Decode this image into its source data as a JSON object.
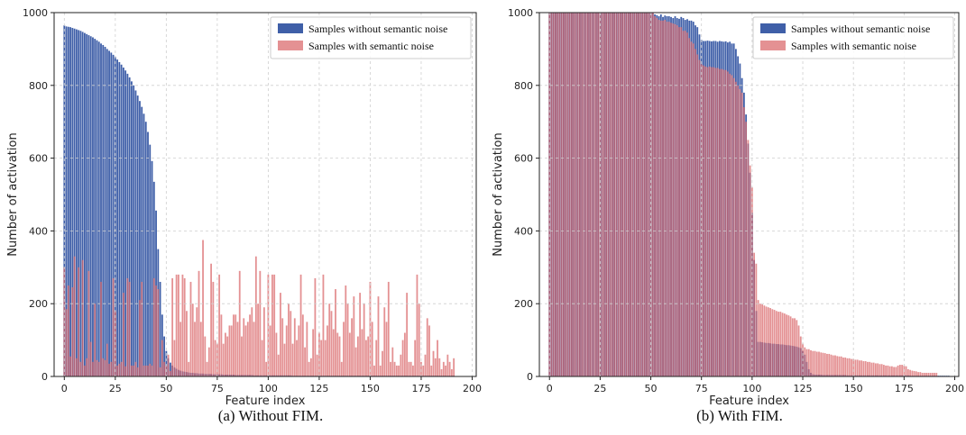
{
  "chart_data": [
    {
      "type": "bar",
      "caption": "(a) Without FIM.",
      "xlabel": "Feature index",
      "ylabel": "Number of activation",
      "xlim": [
        -5,
        202
      ],
      "ylim": [
        0,
        1000
      ],
      "xticks": [
        0,
        25,
        50,
        75,
        100,
        125,
        150,
        175,
        200
      ],
      "yticks": [
        0,
        200,
        400,
        600,
        800,
        1000
      ],
      "grid": true,
      "legend_position": "top-right",
      "series": [
        {
          "name": "Samples without semantic noise",
          "color": "#3f5fa8",
          "x_start": 0,
          "values": [
            965,
            962,
            961,
            960,
            958,
            956,
            954,
            952,
            950,
            947,
            944,
            941,
            938,
            935,
            932,
            928,
            924,
            920,
            915,
            911,
            906,
            900,
            895,
            890,
            884,
            878,
            871,
            864,
            857,
            849,
            841,
            832,
            822,
            811,
            800,
            786,
            772,
            757,
            741,
            722,
            700,
            672,
            637,
            592,
            535,
            456,
            350,
            260,
            170,
            110,
            70,
            50,
            38,
            30,
            25,
            21,
            18,
            16,
            14,
            13,
            12,
            11,
            10,
            10,
            9,
            9,
            8,
            8,
            8,
            7,
            7,
            7,
            7,
            6,
            6,
            6,
            6,
            6,
            5,
            5,
            5,
            5,
            5,
            5,
            4,
            4,
            4,
            4,
            4,
            4,
            4,
            4,
            4,
            3,
            3,
            3,
            3,
            3,
            3,
            3,
            3,
            3,
            3,
            3,
            3,
            3,
            3,
            3,
            3,
            3,
            3,
            3,
            2,
            2,
            2,
            2,
            2,
            2,
            2,
            2,
            2,
            2,
            2,
            2,
            2,
            2,
            2,
            2,
            2,
            2,
            2,
            2,
            2,
            2,
            2,
            2,
            2,
            2,
            2,
            2,
            2,
            2,
            2,
            2,
            2,
            2,
            2,
            2,
            2,
            2,
            2,
            2,
            2,
            2,
            2,
            2,
            2,
            2,
            2,
            2,
            2,
            2,
            2,
            2,
            2,
            2,
            2,
            2,
            2,
            2,
            2,
            2,
            2,
            2,
            2,
            2,
            2,
            2,
            2,
            2,
            2,
            2,
            2,
            2,
            2,
            2,
            2,
            2,
            2,
            2,
            2,
            2
          ]
        },
        {
          "name": "Samples with semantic noise",
          "color": "#d9666a",
          "x_start": 0,
          "values": [
            300,
            185,
            250,
            55,
            245,
            330,
            50,
            300,
            40,
            320,
            30,
            50,
            290,
            95,
            40,
            200,
            45,
            40,
            260,
            50,
            45,
            90,
            35,
            40,
            270,
            180,
            30,
            35,
            40,
            230,
            28,
            270,
            260,
            30,
            30,
            40,
            25,
            210,
            260,
            30,
            30,
            30,
            35,
            30,
            270,
            250,
            240,
            25,
            100,
            40,
            30,
            60,
            15,
            270,
            100,
            280,
            280,
            150,
            280,
            270,
            180,
            40,
            260,
            200,
            150,
            190,
            290,
            150,
            375,
            110,
            40,
            80,
            310,
            260,
            100,
            90,
            280,
            170,
            90,
            120,
            110,
            140,
            140,
            170,
            170,
            150,
            290,
            110,
            160,
            140,
            150,
            170,
            190,
            150,
            330,
            200,
            290,
            100,
            190,
            40,
            280,
            140,
            280,
            280,
            120,
            60,
            230,
            160,
            90,
            140,
            200,
            180,
            90,
            160,
            100,
            140,
            280,
            170,
            80,
            150,
            40,
            50,
            130,
            270,
            60,
            120,
            100,
            280,
            100,
            140,
            200,
            180,
            130,
            240,
            120,
            110,
            40,
            150,
            250,
            200,
            120,
            160,
            220,
            80,
            110,
            230,
            130,
            200,
            100,
            110,
            260,
            150,
            30,
            100,
            220,
            30,
            70,
            190,
            150,
            260,
            40,
            80,
            40,
            30,
            30,
            60,
            100,
            120,
            230,
            40,
            40,
            30,
            100,
            280,
            200,
            40,
            30,
            60,
            160,
            140,
            30,
            70,
            50,
            100,
            50,
            20,
            40,
            30,
            60,
            40,
            20,
            50
          ]
        }
      ]
    },
    {
      "type": "bar",
      "caption": "(b) With FIM.",
      "xlabel": "Feature index",
      "ylabel": "Number of activation",
      "xlim": [
        -5,
        202
      ],
      "ylim": [
        0,
        1000
      ],
      "xticks": [
        0,
        25,
        50,
        75,
        100,
        125,
        150,
        175,
        200
      ],
      "yticks": [
        0,
        200,
        400,
        600,
        800,
        1000
      ],
      "grid": true,
      "legend_position": "top-right",
      "series": [
        {
          "name": "Samples without semantic noise",
          "color": "#3f5fa8",
          "x_start": 0,
          "values": [
            1000,
            1000,
            1000,
            1000,
            1000,
            1000,
            1000,
            1000,
            1000,
            1000,
            1000,
            1000,
            1000,
            1000,
            1000,
            1000,
            1000,
            1000,
            1000,
            1000,
            1000,
            1000,
            1000,
            1000,
            1000,
            1000,
            1000,
            1000,
            1000,
            1000,
            1000,
            1000,
            1000,
            1000,
            1000,
            1000,
            1000,
            1000,
            1000,
            1000,
            1000,
            1000,
            1000,
            1000,
            1000,
            1000,
            1000,
            1000,
            1000,
            1000,
            1000,
            1000,
            995,
            993,
            990,
            995,
            988,
            992,
            990,
            990,
            988,
            985,
            990,
            985,
            983,
            988,
            985,
            980,
            982,
            978,
            978,
            975,
            965,
            960,
            940,
            925,
            922,
            922,
            923,
            922,
            921,
            922,
            922,
            920,
            922,
            921,
            920,
            921,
            918,
            920,
            915,
            915,
            900,
            880,
            860,
            820,
            780,
            720,
            640,
            560,
            450,
            320,
            180,
            95,
            95,
            94,
            93,
            92,
            92,
            91,
            90,
            90,
            89,
            89,
            88,
            88,
            87,
            86,
            86,
            85,
            84,
            83,
            82,
            80,
            78,
            70,
            60,
            40,
            20,
            10,
            6,
            5,
            5,
            5,
            5,
            4,
            4,
            4,
            4,
            4,
            4,
            4,
            4,
            4,
            4,
            4,
            4,
            3,
            3,
            3,
            3,
            3,
            3,
            3,
            3,
            3,
            3,
            3,
            3,
            3,
            3,
            3,
            3,
            3,
            3,
            3,
            3,
            3,
            3,
            3,
            3,
            3,
            3,
            3,
            3,
            3,
            3,
            3,
            2,
            2,
            2,
            2,
            2,
            2,
            2,
            2,
            2,
            2,
            2,
            2,
            2,
            2,
            2,
            2,
            2,
            2,
            2,
            2
          ]
        },
        {
          "name": "Samples with semantic noise",
          "color": "#d9666a",
          "x_start": 0,
          "values": [
            1000,
            1000,
            1000,
            1000,
            1000,
            1000,
            1000,
            1000,
            1000,
            1000,
            1000,
            1000,
            1000,
            1000,
            1000,
            1000,
            1000,
            1000,
            1000,
            1000,
            1000,
            1000,
            1000,
            1000,
            1000,
            1000,
            1000,
            1000,
            1000,
            1000,
            1000,
            1000,
            1000,
            1000,
            1000,
            1000,
            1000,
            1000,
            1000,
            1000,
            1000,
            1000,
            1000,
            1000,
            1000,
            1000,
            1000,
            1000,
            1000,
            1000,
            1000,
            1000,
            990,
            985,
            980,
            978,
            978,
            980,
            975,
            975,
            972,
            970,
            968,
            965,
            960,
            960,
            950,
            950,
            945,
            930,
            920,
            915,
            900,
            885,
            870,
            858,
            855,
            852,
            850,
            852,
            850,
            850,
            848,
            848,
            845,
            845,
            843,
            842,
            838,
            832,
            828,
            820,
            810,
            800,
            790,
            780,
            740,
            700,
            650,
            580,
            520,
            340,
            310,
            210,
            200,
            198,
            195,
            192,
            190,
            188,
            185,
            183,
            180,
            178,
            178,
            175,
            173,
            170,
            168,
            165,
            160,
            160,
            155,
            140,
            110,
            90,
            80,
            75,
            75,
            72,
            70,
            70,
            68,
            68,
            66,
            65,
            64,
            62,
            62,
            60,
            58,
            58,
            56,
            55,
            55,
            52,
            52,
            50,
            50,
            48,
            48,
            46,
            46,
            44,
            44,
            42,
            42,
            40,
            40,
            38,
            38,
            36,
            36,
            34,
            34,
            32,
            30,
            30,
            28,
            28,
            26,
            26,
            30,
            32,
            32,
            30,
            28,
            20,
            18,
            16,
            15,
            14,
            12,
            12,
            10,
            10,
            10,
            10,
            10,
            10,
            10,
            10
          ]
        }
      ]
    }
  ]
}
